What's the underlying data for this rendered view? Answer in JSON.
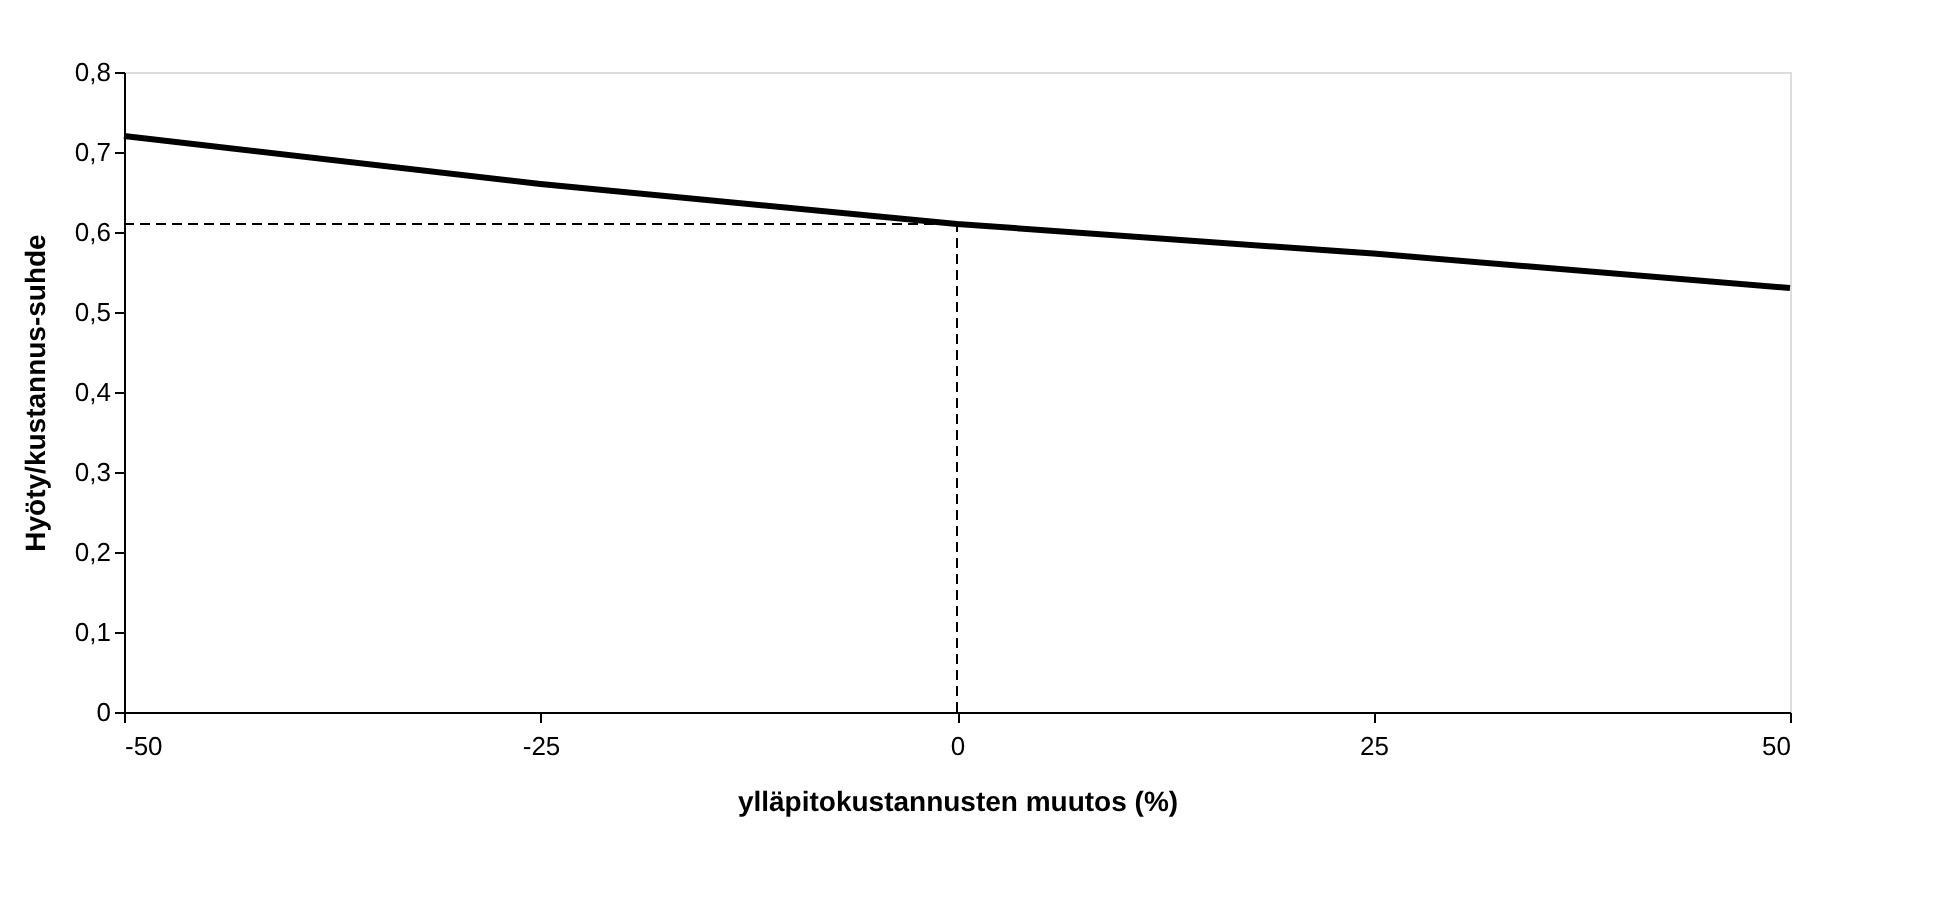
{
  "chart_data": {
    "type": "line",
    "xlabel": "ylläpitokustannusten muutos (%)",
    "ylabel": "Hyöty/kustannus-suhde",
    "x": [
      -50,
      -25,
      0,
      25,
      50
    ],
    "series": [
      {
        "color": "#000000",
        "values": [
          0.72,
          0.66,
          0.61,
          0.573,
          0.53
        ]
      }
    ],
    "xlim": [
      -50,
      50
    ],
    "xticks": [
      -50,
      -25,
      0,
      25,
      50
    ],
    "ylim": [
      0,
      0.8
    ],
    "yticks": [
      0,
      {
        "value": 0.1,
        "label": "0,1"
      },
      {
        "value": 0.2,
        "label": "0,2"
      },
      {
        "value": 0.3,
        "label": "0,3"
      },
      {
        "value": 0.4,
        "label": "0,4"
      },
      {
        "value": 0.5,
        "label": "0,5"
      },
      {
        "value": 0.6,
        "label": "0,6"
      },
      {
        "value": 0.7,
        "label": "0,7"
      },
      {
        "value": 0.8,
        "label": "0,8"
      }
    ],
    "ref_lines": [
      {
        "axis": "x",
        "value": 0,
        "color": "#000000",
        "line_style": "dashed"
      },
      {
        "axis": "y",
        "value": 0.61,
        "color": "#000000",
        "line_style": "dashed"
      }
    ],
    "grid": false,
    "marker": "none",
    "line_style": "solid"
  }
}
